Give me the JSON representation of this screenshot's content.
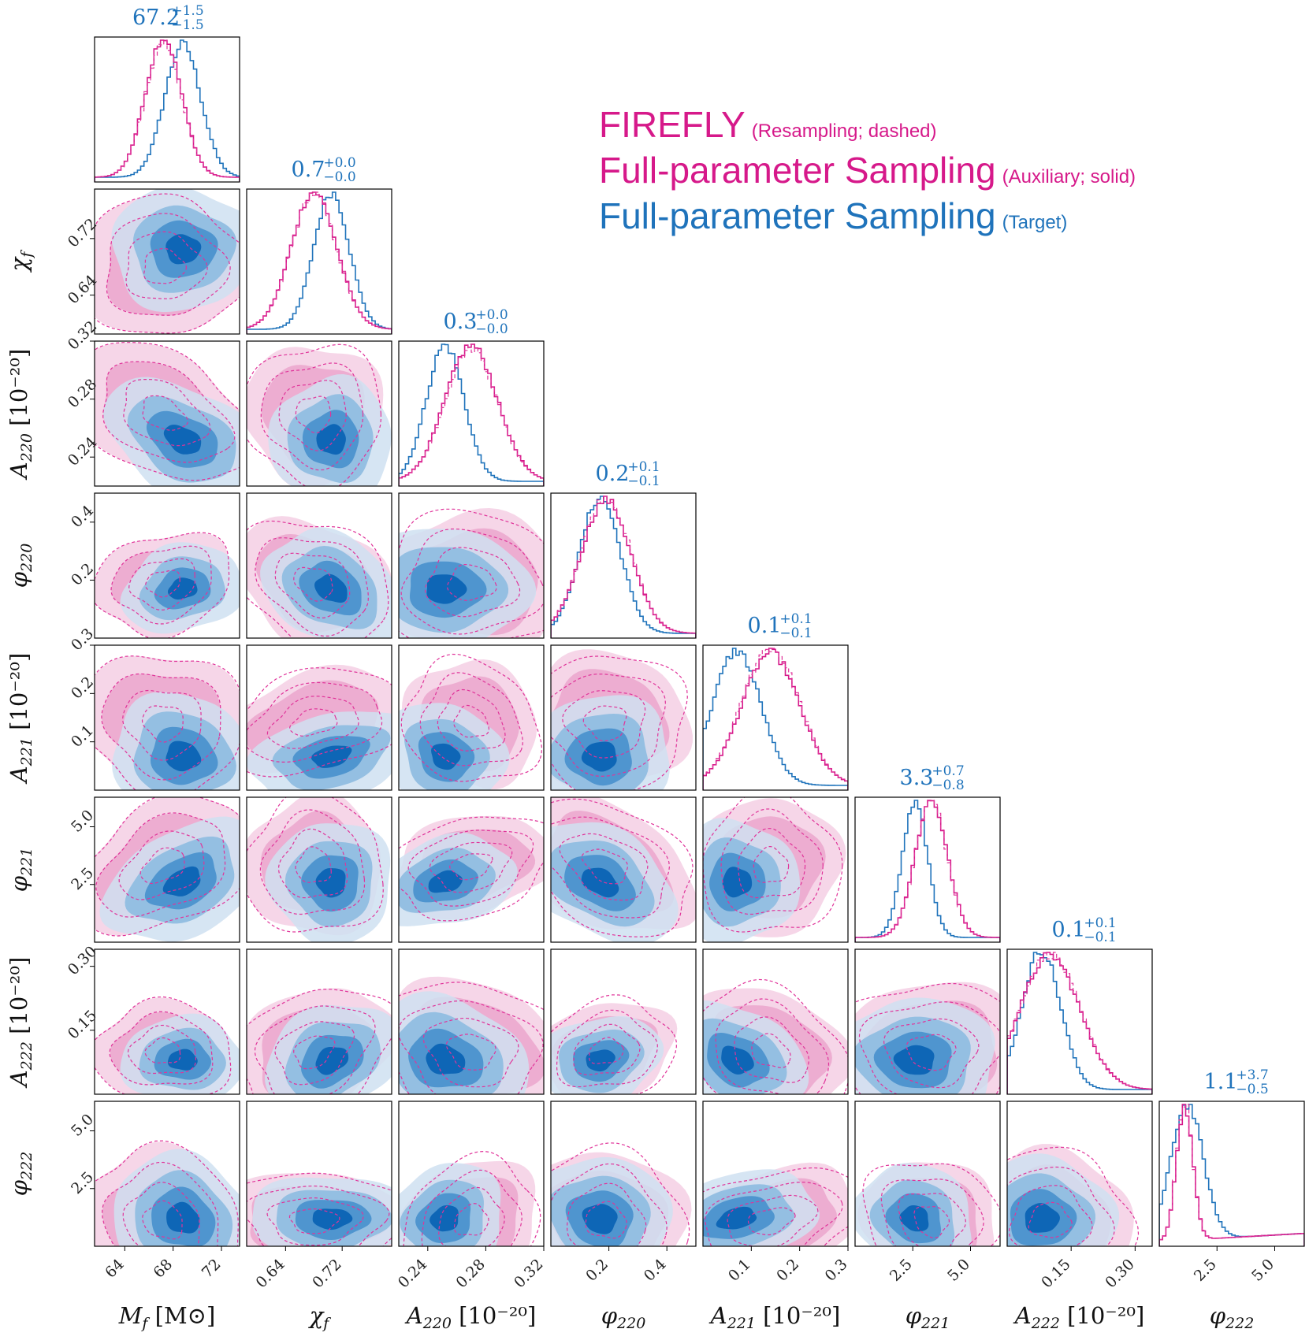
{
  "chart_data": {
    "type": "corner",
    "parameters": [
      {
        "key": "Mf",
        "label": "M_f [M_⊙]",
        "label_main": "M",
        "label_sub": "f",
        "label_unit": " [M⊙]",
        "range": [
          61.5,
          73.5
        ],
        "ticks": [
          64,
          68,
          72
        ],
        "tick_labels": [
          "64",
          "68",
          "72"
        ],
        "title_value": "67.2",
        "title_plus": "+1.5",
        "title_minus": "−1.5"
      },
      {
        "key": "chif",
        "label": "χ_f",
        "label_main": "χ",
        "label_sub": "f",
        "label_unit": "",
        "range": [
          0.585,
          0.79
        ],
        "ticks": [
          0.64,
          0.72
        ],
        "tick_labels": [
          "0.64",
          "0.72"
        ],
        "title_value": "0.7",
        "title_plus": "+0.0",
        "title_minus": "−0.0"
      },
      {
        "key": "A220",
        "label": "A_220 [10^-20]",
        "label_main": "A",
        "label_sub": "220",
        "label_unit": " [10⁻²⁰]",
        "range": [
          0.22,
          0.32
        ],
        "ticks": [
          0.24,
          0.28,
          0.32
        ],
        "tick_labels": [
          "0.24",
          "0.28",
          "0.32"
        ],
        "title_value": "0.3",
        "title_plus": "+0.0",
        "title_minus": "−0.0"
      },
      {
        "key": "phi220",
        "label": "φ_220",
        "label_main": "φ",
        "label_sub": "220",
        "label_unit": "",
        "range": [
          0.0,
          0.5
        ],
        "ticks": [
          0.2,
          0.4
        ],
        "tick_labels": [
          "0.2",
          "0.4"
        ],
        "title_value": "0.2",
        "title_plus": "+0.1",
        "title_minus": "−0.1"
      },
      {
        "key": "A221",
        "label": "A_221 [10^-20]",
        "label_main": "A",
        "label_sub": "221",
        "label_unit": " [10⁻²⁰]",
        "range": [
          0.0,
          0.3
        ],
        "ticks": [
          0.1,
          0.2,
          0.3
        ],
        "tick_labels": [
          "0.1",
          "0.2",
          "0.3"
        ],
        "title_value": "0.1",
        "title_plus": "+0.1",
        "title_minus": "−0.1"
      },
      {
        "key": "phi221",
        "label": "φ_221",
        "label_main": "φ",
        "label_sub": "221",
        "label_unit": "",
        "range": [
          0.0,
          6.28
        ],
        "ticks": [
          2.5,
          5.0
        ],
        "tick_labels": [
          "2.5",
          "5.0"
        ],
        "title_value": "3.3",
        "title_plus": "+0.7",
        "title_minus": "−0.8"
      },
      {
        "key": "A222",
        "label": "A_222 [10^-20]",
        "label_main": "A",
        "label_sub": "222",
        "label_unit": " [10⁻²⁰]",
        "range": [
          0.0,
          0.34
        ],
        "ticks": [
          0.15,
          0.3
        ],
        "tick_labels": [
          "0.15",
          "0.30"
        ],
        "title_value": "0.1",
        "title_plus": "+0.1",
        "title_minus": "−0.1"
      },
      {
        "key": "phi222",
        "label": "φ_222",
        "label_main": "φ",
        "label_sub": "222",
        "label_unit": "",
        "range": [
          0.0,
          6.28
        ],
        "ticks": [
          2.5,
          5.0
        ],
        "tick_labels": [
          "2.5",
          "5.0"
        ],
        "title_value": "1.1",
        "title_plus": "+3.7",
        "title_minus": "−0.5"
      }
    ],
    "marginals": {
      "target": [
        {
          "mean": 68.8,
          "sd": 1.5
        },
        {
          "mean": 0.705,
          "sd": 0.025
        },
        {
          "mean": 0.252,
          "sd": 0.013
        },
        {
          "mean": 0.17,
          "sd": 0.07
        },
        {
          "mean": 0.07,
          "sd": 0.05
        },
        {
          "mean": 2.6,
          "sd": 0.55
        },
        {
          "mean": 0.08,
          "sd": 0.045
        },
        {
          "mean": 1.2,
          "sd": 0.7
        }
      ],
      "firefly": [
        {
          "mean": 67.2,
          "sd": 1.5
        },
        {
          "mean": 0.68,
          "sd": 0.032
        },
        {
          "mean": 0.27,
          "sd": 0.018
        },
        {
          "mean": 0.19,
          "sd": 0.085
        },
        {
          "mean": 0.14,
          "sd": 0.06
        },
        {
          "mean": 3.3,
          "sd": 0.7
        },
        {
          "mean": 0.1,
          "sd": 0.07
        },
        {
          "mean": 1.1,
          "sd": 0.35
        }
      ]
    },
    "series": [
      {
        "name": "FIREFLY",
        "note": "(Resampling; dashed)",
        "color": "#d6198a",
        "style": "dashed"
      },
      {
        "name": "Full-parameter Sampling",
        "note": "(Auxiliary; solid)",
        "color": "#d6198a",
        "style": "solid"
      },
      {
        "name": "Full-parameter Sampling",
        "note": "(Target)",
        "color": "#1f73bb",
        "style": "solid"
      }
    ],
    "colors": {
      "target_fill": [
        "#cfe0f1",
        "#94bfe2",
        "#4f95cf",
        "#0e66b6"
      ],
      "aux_fill": [
        "#f4cfe4",
        "#eba6cd"
      ],
      "firefly_line": "#e0349a",
      "target_line": "#1f73bb",
      "aux_line": "#d6198a"
    }
  }
}
